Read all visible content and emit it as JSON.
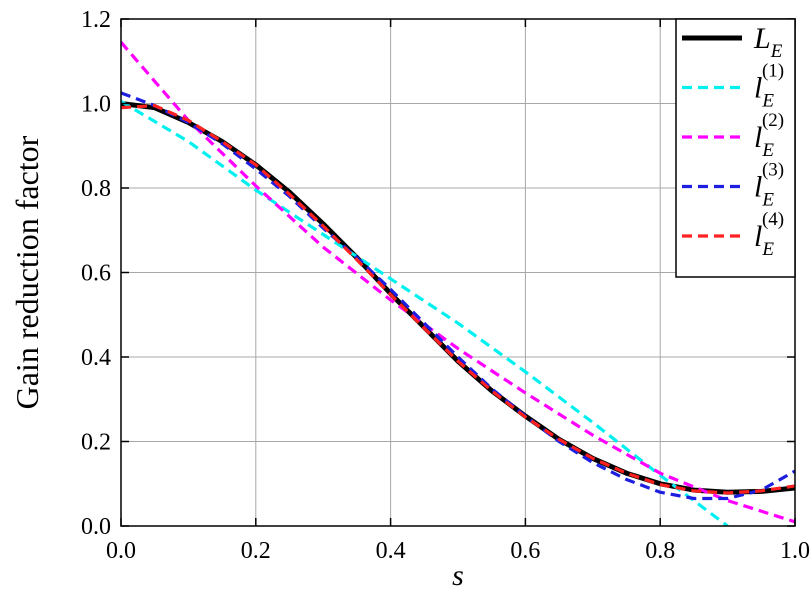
{
  "chart_data": {
    "type": "line",
    "xlabel": "s",
    "ylabel": "Gain reduction factor",
    "xlim": [
      0.0,
      1.0
    ],
    "ylim": [
      0.0,
      1.2
    ],
    "xticks": [
      "0.0",
      "0.2",
      "0.4",
      "0.6",
      "0.8",
      "1.0"
    ],
    "yticks": [
      "0.0",
      "0.2",
      "0.4",
      "0.6",
      "0.8",
      "1.0",
      "1.2"
    ],
    "grid": true,
    "legend_position": "top-right",
    "series": [
      {
        "name": "L_E",
        "legend_base": "L",
        "legend_sub": "E",
        "legend_sup": "",
        "color": "#000000",
        "style": "solid",
        "x": [
          0.0,
          0.05,
          0.1,
          0.15,
          0.2,
          0.25,
          0.3,
          0.35,
          0.4,
          0.45,
          0.5,
          0.55,
          0.6,
          0.65,
          0.7,
          0.75,
          0.8,
          0.85,
          0.9,
          0.95,
          1.0
        ],
        "y": [
          1.0,
          0.99,
          0.955,
          0.91,
          0.855,
          0.79,
          0.715,
          0.635,
          0.55,
          0.47,
          0.39,
          0.32,
          0.26,
          0.205,
          0.16,
          0.125,
          0.1,
          0.085,
          0.08,
          0.082,
          0.09
        ]
      },
      {
        "name": "l_E^(1)",
        "legend_base": "l",
        "legend_sub": "E",
        "legend_sup": "(1)",
        "color": "#00f0f0",
        "style": "dashed",
        "x": [
          0.0,
          0.1,
          0.2,
          0.3,
          0.4,
          0.5,
          0.6,
          0.7,
          0.8,
          0.9
        ],
        "y": [
          1.005,
          0.91,
          0.795,
          0.69,
          0.585,
          0.48,
          0.365,
          0.245,
          0.12,
          0.0
        ]
      },
      {
        "name": "l_E^(2)",
        "legend_base": "l",
        "legend_sub": "E",
        "legend_sup": "(2)",
        "color": "#ff00ff",
        "style": "dashed",
        "x": [
          0.0,
          0.1,
          0.2,
          0.3,
          0.4,
          0.5,
          0.6,
          0.7,
          0.8,
          0.9,
          1.0
        ],
        "y": [
          1.145,
          0.96,
          0.805,
          0.66,
          0.535,
          0.42,
          0.315,
          0.215,
          0.125,
          0.06,
          0.01
        ]
      },
      {
        "name": "l_E^(3)",
        "legend_base": "l",
        "legend_sub": "E",
        "legend_sup": "(3)",
        "color": "#1e1ee0",
        "style": "dashed",
        "x": [
          0.0,
          0.05,
          0.1,
          0.15,
          0.2,
          0.25,
          0.3,
          0.35,
          0.4,
          0.45,
          0.5,
          0.55,
          0.6,
          0.65,
          0.7,
          0.75,
          0.8,
          0.85,
          0.9,
          0.95,
          1.0
        ],
        "y": [
          1.025,
          0.995,
          0.955,
          0.905,
          0.845,
          0.78,
          0.705,
          0.635,
          0.56,
          0.48,
          0.4,
          0.325,
          0.26,
          0.2,
          0.15,
          0.11,
          0.08,
          0.065,
          0.065,
          0.085,
          0.13
        ]
      },
      {
        "name": "l_E^(4)",
        "legend_base": "l",
        "legend_sub": "E",
        "legend_sup": "(4)",
        "color": "#ff2020",
        "style": "dashed",
        "x": [
          0.0,
          0.05,
          0.1,
          0.15,
          0.2,
          0.25,
          0.3,
          0.35,
          0.4,
          0.45,
          0.5,
          0.55,
          0.6,
          0.65,
          0.7,
          0.75,
          0.8,
          0.85,
          0.9,
          0.95,
          1.0
        ],
        "y": [
          0.99,
          0.995,
          0.96,
          0.91,
          0.855,
          0.785,
          0.71,
          0.63,
          0.548,
          0.468,
          0.39,
          0.32,
          0.258,
          0.205,
          0.16,
          0.125,
          0.098,
          0.083,
          0.078,
          0.083,
          0.095
        ]
      }
    ]
  }
}
